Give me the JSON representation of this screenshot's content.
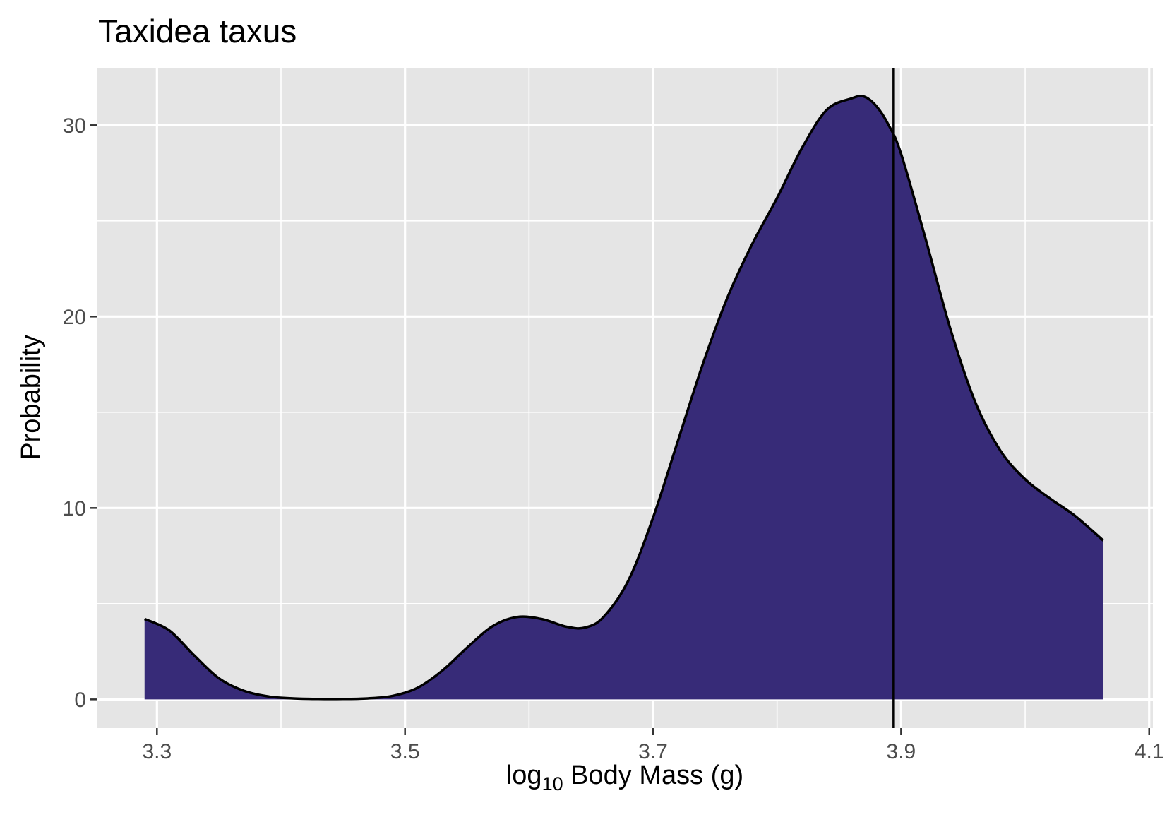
{
  "chart_data": {
    "type": "area",
    "title": "Taxidea taxus",
    "xlabel": {
      "prefix": "log",
      "subscript": "10",
      "suffix": " Body Mass (g)"
    },
    "ylabel": "Probability",
    "xlim": [
      3.252,
      4.103
    ],
    "ylim": [
      -1.5,
      33.0
    ],
    "x_ticks": [
      3.3,
      3.5,
      3.7,
      3.9,
      4.1
    ],
    "x_tick_labels": [
      "3.3",
      "3.5",
      "3.7",
      "3.9",
      "4.1"
    ],
    "x_minor_ticks": [
      3.4,
      3.6,
      3.8,
      4.0
    ],
    "y_ticks": [
      0,
      10,
      20,
      30
    ],
    "y_tick_labels": [
      "0",
      "10",
      "20",
      "30"
    ],
    "y_minor_ticks": [
      5,
      15,
      25
    ],
    "grid": true,
    "legend": "none",
    "fill_color": "#372B78",
    "line_color": "#000000",
    "panel_color": "#E5E5E5",
    "reference_line_x": 3.894,
    "density": {
      "x": [
        3.29,
        3.31,
        3.33,
        3.35,
        3.37,
        3.39,
        3.41,
        3.43,
        3.45,
        3.47,
        3.49,
        3.51,
        3.53,
        3.55,
        3.57,
        3.59,
        3.61,
        3.63,
        3.645,
        3.66,
        3.68,
        3.7,
        3.72,
        3.74,
        3.76,
        3.78,
        3.8,
        3.82,
        3.84,
        3.86,
        3.87,
        3.88,
        3.89,
        3.9,
        3.92,
        3.94,
        3.96,
        3.98,
        4.0,
        4.02,
        4.04,
        4.063
      ],
      "y": [
        4.2,
        3.6,
        2.3,
        1.1,
        0.45,
        0.15,
        0.05,
        0.02,
        0.02,
        0.05,
        0.18,
        0.6,
        1.5,
        2.7,
        3.8,
        4.3,
        4.2,
        3.8,
        3.75,
        4.3,
        6.2,
        9.5,
        13.5,
        17.5,
        21.0,
        23.8,
        26.2,
        28.8,
        30.8,
        31.4,
        31.5,
        31.0,
        30.0,
        28.5,
        24.0,
        19.3,
        15.5,
        13.0,
        11.5,
        10.5,
        9.6,
        8.3
      ]
    }
  }
}
